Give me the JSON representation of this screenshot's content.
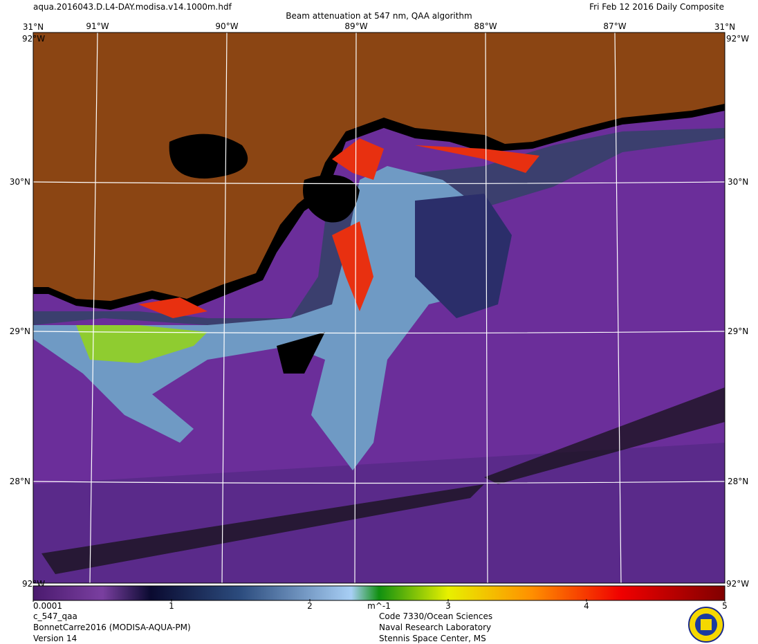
{
  "header": {
    "file": "aqua.2016043.D.L4-DAY.modisa.v14.1000m.hdf",
    "title": "Beam attenuation at 547 nm, QAA algorithm",
    "date": "Fri Feb 12 2016 Daily Composite"
  },
  "map": {
    "lon_labels": [
      "91°W",
      "90°W",
      "89°W",
      "88°W",
      "87°W"
    ],
    "lat_labels": [
      "30°N",
      "29°N",
      "28°N"
    ],
    "corner_top": "31°N",
    "corner_bottom": "92°W"
  },
  "colorbar": {
    "unit": "m^-1",
    "ticks": [
      0.0001,
      1,
      2,
      3,
      4,
      5
    ]
  },
  "footer": {
    "left": [
      "c_547_qaa",
      "BonnetCarre2016 (MODISA-AQUA-PM)",
      "Version 14"
    ],
    "center": [
      "Code 7330/Ocean Sciences",
      "Naval Research Laboratory",
      "Stennis Space Center, MS"
    ]
  }
}
